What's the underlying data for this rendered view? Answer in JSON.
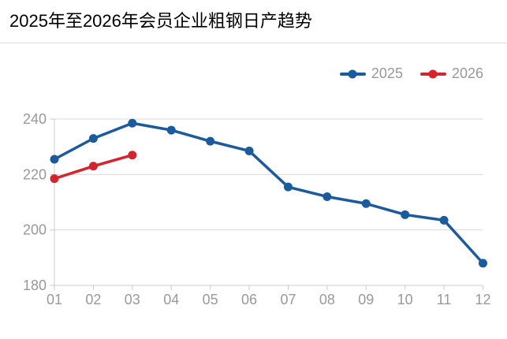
{
  "header": {
    "title": "2025年至2026年会员企业粗钢日产趋势"
  },
  "legend": {
    "position": "top-right",
    "items": [
      {
        "label": "2025",
        "color": "#1a5a9e"
      },
      {
        "label": "2026",
        "color": "#d7232b"
      }
    ]
  },
  "chart_data": {
    "type": "line",
    "title": "2025年至2026年会员企业粗钢日产趋势",
    "categories": [
      "01",
      "02",
      "03",
      "04",
      "05",
      "06",
      "07",
      "08",
      "09",
      "10",
      "11",
      "12"
    ],
    "series": [
      {
        "name": "2025",
        "color": "#1a5a9e",
        "values": [
          225.5,
          233,
          238.5,
          236,
          232,
          228.5,
          215.5,
          212,
          209.5,
          205.5,
          203.5,
          188
        ]
      },
      {
        "name": "2026",
        "color": "#d7232b",
        "values": [
          218.5,
          223,
          227
        ]
      }
    ],
    "xlabel": "",
    "ylabel": "",
    "ylim": [
      180,
      240
    ],
    "yticks": [
      180,
      200,
      220,
      240
    ],
    "grid": true,
    "legend_position": "top-right"
  },
  "colors": {
    "grid": "#d9d9d9",
    "axis": "#cccccc",
    "tick_label": "#999999",
    "legend_text": "#999999",
    "divider": "#dddddd",
    "title": "#000000",
    "background": "#ffffff"
  }
}
